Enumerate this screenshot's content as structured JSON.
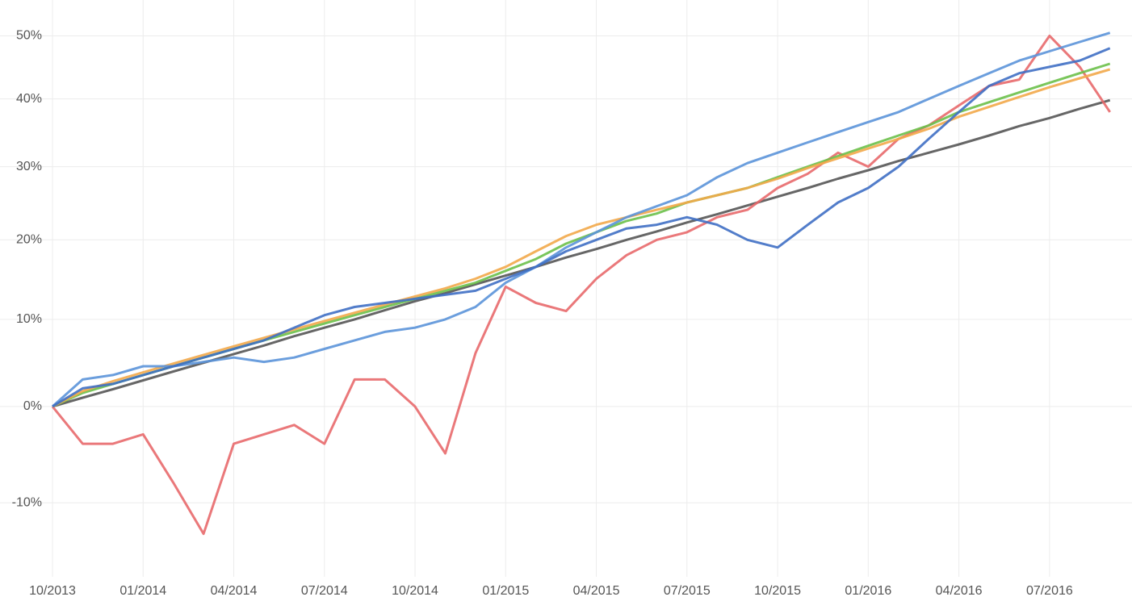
{
  "chart_data": {
    "type": "line",
    "yscale": "log",
    "grid": true,
    "x": [
      "10/2013",
      "11/2013",
      "12/2013",
      "01/2014",
      "02/2014",
      "03/2014",
      "04/2014",
      "05/2014",
      "06/2014",
      "07/2014",
      "08/2014",
      "09/2014",
      "10/2014",
      "11/2014",
      "12/2014",
      "01/2015",
      "02/2015",
      "03/2015",
      "04/2015",
      "05/2015",
      "06/2015",
      "07/2015",
      "08/2015",
      "09/2015",
      "10/2015",
      "11/2015",
      "12/2015",
      "01/2016",
      "02/2016",
      "03/2016",
      "04/2016",
      "05/2016",
      "06/2016",
      "07/2016",
      "08/2016",
      "09/2016"
    ],
    "ylim": [
      -17,
      56
    ],
    "yticks": [
      {
        "value": -10,
        "label": "-10%"
      },
      {
        "value": 0,
        "label": "0%"
      },
      {
        "value": 10,
        "label": "10%"
      },
      {
        "value": 20,
        "label": "20%"
      },
      {
        "value": 30,
        "label": "30%"
      },
      {
        "value": 40,
        "label": "40%"
      },
      {
        "value": 50,
        "label": "50%"
      }
    ],
    "series": [
      {
        "color": "#555555",
        "values": [
          0,
          0.96,
          1.9,
          2.9,
          3.9,
          4.9,
          5.9,
          6.9,
          8.0,
          9.0,
          10.0,
          11.1,
          12.2,
          13.2,
          14.3,
          15.4,
          16.5,
          17.7,
          18.8,
          20.0,
          21.1,
          22.3,
          23.4,
          24.6,
          25.8,
          27.0,
          28.3,
          29.5,
          30.8,
          32.0,
          33.2,
          34.5,
          35.9,
          37.1,
          38.5,
          39.8
        ]
      },
      {
        "color": "#e8696b",
        "values": [
          0,
          -4,
          -4,
          -3,
          -8,
          -13,
          -4,
          -3,
          -2,
          -4,
          3,
          3,
          0,
          -5,
          6,
          14,
          12,
          11,
          15,
          18,
          20,
          21,
          23,
          24,
          27,
          29,
          32,
          30,
          34,
          36,
          39,
          42,
          43,
          50,
          45,
          38
        ]
      },
      {
        "color": "#6cc04a",
        "values": [
          0,
          1.5,
          2.5,
          3.5,
          4.5,
          5.5,
          6.5,
          7.5,
          8.5,
          9.5,
          10.5,
          11.5,
          12.5,
          13.5,
          14.5,
          16,
          17.5,
          19.5,
          21,
          22.5,
          23.5,
          25,
          26,
          27,
          28.5,
          30,
          31.5,
          33,
          34.5,
          36,
          38,
          39.5,
          41,
          42.5,
          44,
          45.5
        ]
      },
      {
        "color": "#f2a84a",
        "values": [
          0,
          1.7,
          2.8,
          3.8,
          4.8,
          5.8,
          6.8,
          7.8,
          8.8,
          9.8,
          10.8,
          11.8,
          12.8,
          13.8,
          15,
          16.5,
          18.5,
          20.5,
          22,
          23,
          24,
          25,
          26,
          27,
          28.3,
          29.8,
          31.2,
          32.6,
          34,
          35.5,
          37.3,
          38.8,
          40.3,
          41.8,
          43.2,
          44.6
        ]
      },
      {
        "color": "#5b93d9",
        "values": [
          0,
          3,
          3.5,
          4.5,
          4.5,
          5,
          5.5,
          5,
          5.5,
          6.5,
          7.5,
          8.5,
          9,
          10,
          11.5,
          14.5,
          16.5,
          19,
          21,
          23,
          24.5,
          26,
          28.5,
          30.5,
          32,
          33.5,
          35,
          36.5,
          38,
          40,
          42,
          44,
          46,
          47.5,
          49,
          50.5
        ]
      },
      {
        "color": "#3f6fc4",
        "values": [
          0,
          2,
          2.5,
          3.5,
          4.5,
          5.5,
          6.5,
          7.5,
          9,
          10.5,
          11.5,
          12,
          12.5,
          13,
          13.5,
          15,
          16.5,
          18.5,
          20,
          21.5,
          22,
          23,
          22,
          20,
          19,
          22,
          25,
          27,
          30,
          34,
          38,
          42,
          44,
          45,
          46,
          48
        ]
      }
    ]
  }
}
